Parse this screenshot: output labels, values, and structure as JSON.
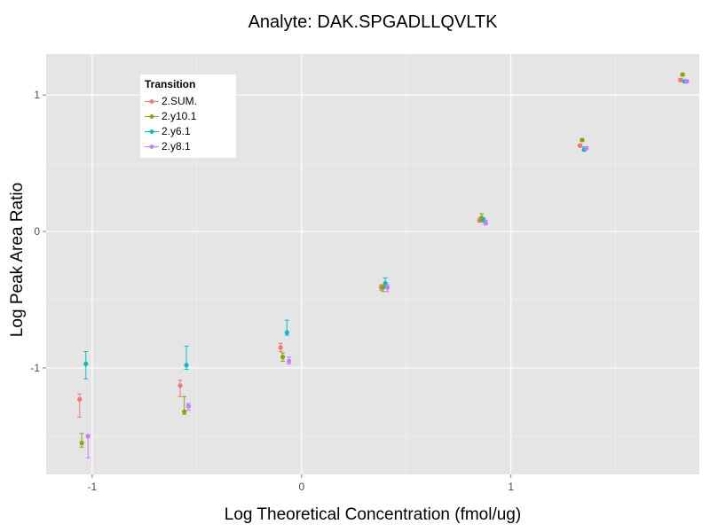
{
  "chart_data": {
    "type": "scatter",
    "title": "Analyte: DAK.SPGADLLQVLTK",
    "xlabel": "Log Theoretical Concentration (fmol/ug)",
    "ylabel": "Log Peak Area Ratio",
    "xlim": [
      -1.22,
      1.9
    ],
    "ylim": [
      -1.78,
      1.3
    ],
    "x_ticks": [
      -1,
      0,
      1
    ],
    "x_tick_labels": [
      "-1",
      "0",
      "1"
    ],
    "y_ticks": [
      -1,
      0,
      1
    ],
    "y_tick_labels": [
      "-1",
      "0",
      "1"
    ],
    "grid": true,
    "legend": {
      "title": "Transition",
      "placement": "top-left"
    },
    "series": [
      {
        "name": "2.SUM.",
        "color": "#F8766D",
        "points": [
          {
            "x": -1.06,
            "y": -1.23,
            "ymin": -1.36,
            "ymax": -1.19
          },
          {
            "x": -0.58,
            "y": -1.13,
            "ymin": -1.21,
            "ymax": -1.09
          },
          {
            "x": -0.1,
            "y": -0.85,
            "ymin": -0.88,
            "ymax": -0.82
          },
          {
            "x": 0.38,
            "y": -0.41,
            "ymin": -0.43,
            "ymax": -0.39
          },
          {
            "x": 0.85,
            "y": 0.08,
            "ymin": 0.07,
            "ymax": 0.1
          },
          {
            "x": 1.33,
            "y": 0.63,
            "ymin": 0.62,
            "ymax": 0.64
          },
          {
            "x": 1.81,
            "y": 1.11,
            "ymin": 1.1,
            "ymax": 1.12
          }
        ]
      },
      {
        "name": "2.y10.1",
        "color": "#7CAE00",
        "points": [
          {
            "x": -1.05,
            "y": -1.55,
            "ymin": -1.58,
            "ymax": -1.48
          },
          {
            "x": -0.56,
            "y": -1.32,
            "ymin": -1.34,
            "ymax": -1.21
          },
          {
            "x": -0.09,
            "y": -0.92,
            "ymin": -0.95,
            "ymax": -0.89
          },
          {
            "x": 0.39,
            "y": -0.41,
            "ymin": -0.44,
            "ymax": -0.39
          },
          {
            "x": 0.86,
            "y": 0.1,
            "ymin": 0.08,
            "ymax": 0.13
          },
          {
            "x": 1.34,
            "y": 0.67,
            "ymin": 0.66,
            "ymax": 0.68
          },
          {
            "x": 1.82,
            "y": 1.15,
            "ymin": 1.14,
            "ymax": 1.16
          }
        ]
      },
      {
        "name": "2.y6.1",
        "color": "#00BFC4",
        "points": [
          {
            "x": -1.03,
            "y": -0.97,
            "ymin": -1.08,
            "ymax": -0.88
          },
          {
            "x": -0.55,
            "y": -0.98,
            "ymin": -1.01,
            "ymax": -0.84
          },
          {
            "x": -0.07,
            "y": -0.74,
            "ymin": -0.76,
            "ymax": -0.65
          },
          {
            "x": 0.4,
            "y": -0.38,
            "ymin": -0.41,
            "ymax": -0.34
          },
          {
            "x": 0.87,
            "y": 0.08,
            "ymin": 0.07,
            "ymax": 0.1
          },
          {
            "x": 1.35,
            "y": 0.6,
            "ymin": 0.59,
            "ymax": 0.62
          },
          {
            "x": 1.83,
            "y": 1.1,
            "ymin": 1.09,
            "ymax": 1.11
          }
        ]
      },
      {
        "name": "2.y8.1",
        "color": "#C77CFF",
        "points": [
          {
            "x": -1.02,
            "y": -1.5,
            "ymin": -1.66,
            "ymax": -1.49
          },
          {
            "x": -0.54,
            "y": -1.28,
            "ymin": -1.31,
            "ymax": -1.26
          },
          {
            "x": -0.06,
            "y": -0.95,
            "ymin": -0.97,
            "ymax": -0.92
          },
          {
            "x": 0.41,
            "y": -0.41,
            "ymin": -0.44,
            "ymax": -0.39
          },
          {
            "x": 0.88,
            "y": 0.06,
            "ymin": 0.05,
            "ymax": 0.08
          },
          {
            "x": 1.36,
            "y": 0.61,
            "ymin": 0.6,
            "ymax": 0.62
          },
          {
            "x": 1.84,
            "y": 1.1,
            "ymin": 1.09,
            "ymax": 1.11
          }
        ]
      }
    ]
  }
}
